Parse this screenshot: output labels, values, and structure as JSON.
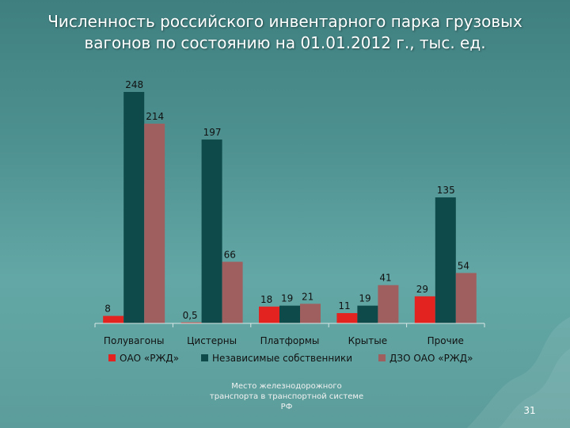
{
  "slide": {
    "title_line1": "Численность российского инвентарного парка грузовых",
    "title_line2": "вагонов по состоянию на 01.01.2012 г., тыс. ед.",
    "footer_note": "Место железнодорожного транспорта в транспортной системе РФ",
    "page_number": "31"
  },
  "chart_data": {
    "type": "bar",
    "categories": [
      "Полувагоны",
      "Цистерны",
      "Платформы",
      "Крытые",
      "Прочие"
    ],
    "series": [
      {
        "name": "ОАО «РЖД»",
        "color": "#e3231f",
        "values": [
          8,
          0.5,
          18,
          11,
          29
        ],
        "labels": [
          "8",
          "0,5",
          "18",
          "11",
          "29"
        ]
      },
      {
        "name": "Независимые собственники",
        "color": "#0d4a49",
        "values": [
          248,
          197,
          19,
          19,
          135
        ],
        "labels": [
          "248",
          "197",
          "19",
          "19",
          "135"
        ]
      },
      {
        "name": "ДЗО ОАО «РЖД»",
        "color": "#a05f5f",
        "values": [
          214,
          66,
          21,
          41,
          54
        ],
        "labels": [
          "214",
          "66",
          "21",
          "41",
          "54"
        ]
      }
    ],
    "ylim": [
      0,
      248
    ],
    "legend_position": "bottom",
    "grid": false
  }
}
